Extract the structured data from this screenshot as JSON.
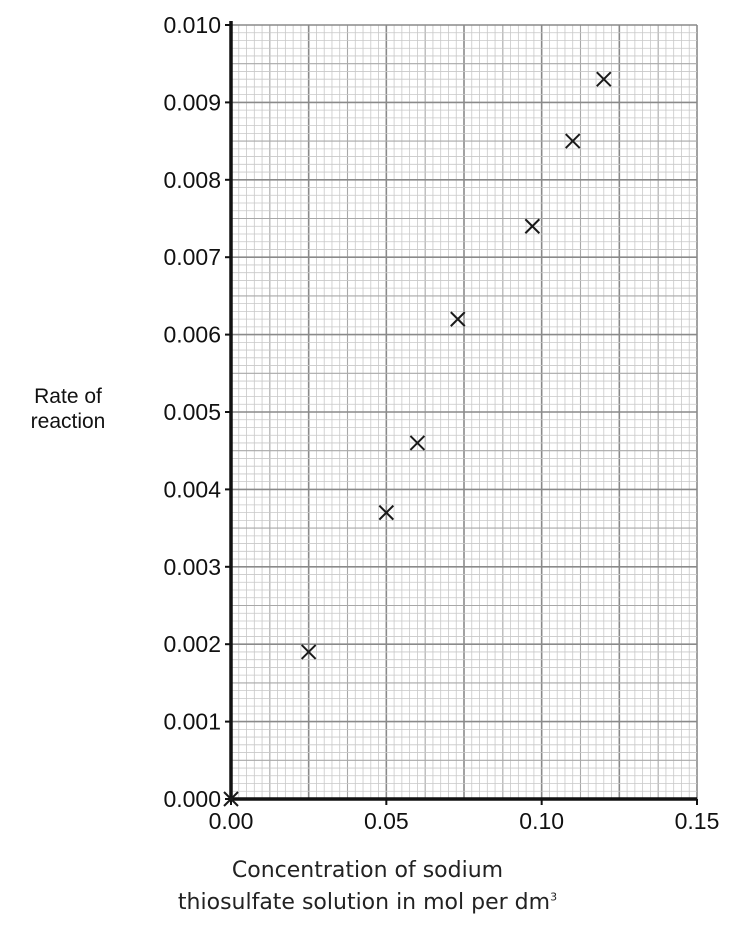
{
  "chart_data": {
    "type": "scatter",
    "title": "",
    "xlabel_line1": "Concentration of sodium",
    "xlabel_line2": "thiosulfate solution in mol per dm",
    "xlabel_sup": "3",
    "ylabel_line1": "Rate of",
    "ylabel_line2": "reaction",
    "xlim": [
      0,
      0.15
    ],
    "ylim": [
      0,
      0.01
    ],
    "xticks": [
      "0.00",
      "0.05",
      "0.10",
      "0.15"
    ],
    "yticks": [
      "0.000",
      "0.001",
      "0.002",
      "0.003",
      "0.004",
      "0.005",
      "0.006",
      "0.007",
      "0.008",
      "0.009",
      "0.010"
    ],
    "grid": true,
    "marker": "x",
    "points": [
      {
        "x": 0.0,
        "y": 0.0
      },
      {
        "x": 0.025,
        "y": 0.0019
      },
      {
        "x": 0.05,
        "y": 0.0037
      },
      {
        "x": 0.06,
        "y": 0.0046
      },
      {
        "x": 0.073,
        "y": 0.0062
      },
      {
        "x": 0.097,
        "y": 0.0074
      },
      {
        "x": 0.11,
        "y": 0.0085
      },
      {
        "x": 0.12,
        "y": 0.0093
      }
    ]
  }
}
